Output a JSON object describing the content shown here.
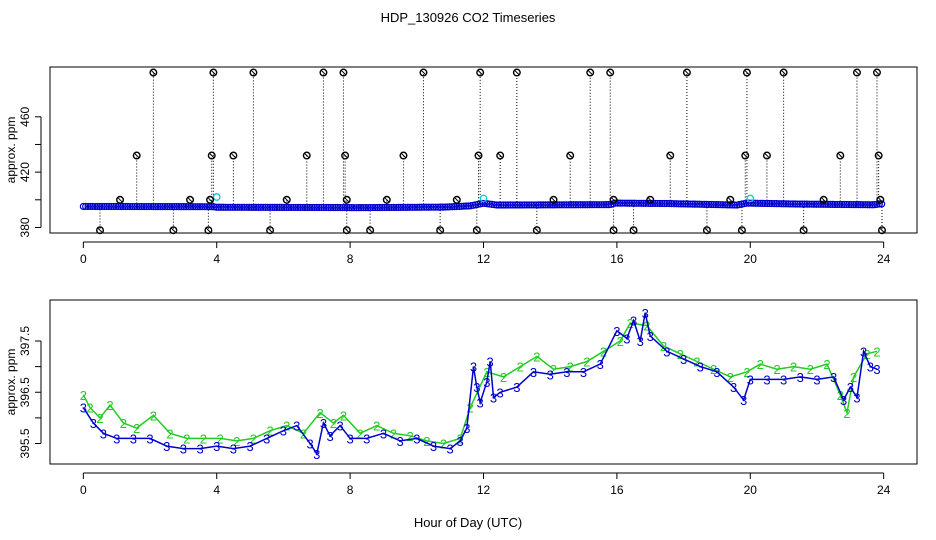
{
  "title": "HDP_130926  CO2 Timeseries",
  "xlabel": "Hour of Day (UTC)",
  "colors": {
    "blue": "#0000cc",
    "cyan": "#00cccc",
    "green": "#22cc22",
    "black": "#000000"
  },
  "chart_data": [
    {
      "type": "scatter",
      "name": "upper-panel",
      "ylabel": "approx. ppm",
      "xlim": [
        -1,
        25
      ],
      "ylim": [
        376,
        496
      ],
      "xticks": [
        0,
        4,
        8,
        12,
        16,
        20,
        24
      ],
      "yticks": [
        380,
        420,
        460
      ],
      "baseline": [
        [
          0,
          395.2
        ],
        [
          3.9,
          395.0
        ],
        [
          4.0,
          394.6
        ],
        [
          7.8,
          394.4
        ],
        [
          8.1,
          394.3
        ],
        [
          10.8,
          394.7
        ],
        [
          11.6,
          395.6
        ],
        [
          12.0,
          397.5
        ],
        [
          12.4,
          396.2
        ],
        [
          15.8,
          396.5
        ],
        [
          15.95,
          397.6
        ],
        [
          17.5,
          397.3
        ],
        [
          19.6,
          396.2
        ],
        [
          19.9,
          397.6
        ],
        [
          21.5,
          396.9
        ],
        [
          23.7,
          396.4
        ],
        [
          23.9,
          397.0
        ]
      ],
      "spikes_high": [
        {
          "x": 2.1,
          "y": 492
        },
        {
          "x": 3.9,
          "y": 492
        },
        {
          "x": 5.1,
          "y": 492
        },
        {
          "x": 7.2,
          "y": 492
        },
        {
          "x": 7.8,
          "y": 492
        },
        {
          "x": 10.2,
          "y": 492
        },
        {
          "x": 11.9,
          "y": 492
        },
        {
          "x": 13.0,
          "y": 492
        },
        {
          "x": 15.2,
          "y": 492
        },
        {
          "x": 15.8,
          "y": 492
        },
        {
          "x": 18.1,
          "y": 492
        },
        {
          "x": 19.9,
          "y": 492
        },
        {
          "x": 21.0,
          "y": 492
        },
        {
          "x": 23.2,
          "y": 492
        },
        {
          "x": 23.8,
          "y": 492
        },
        {
          "x": 1.6,
          "y": 432
        },
        {
          "x": 3.85,
          "y": 432
        },
        {
          "x": 4.5,
          "y": 432
        },
        {
          "x": 6.7,
          "y": 432
        },
        {
          "x": 7.85,
          "y": 432
        },
        {
          "x": 9.6,
          "y": 432
        },
        {
          "x": 11.85,
          "y": 432
        },
        {
          "x": 12.5,
          "y": 432
        },
        {
          "x": 14.6,
          "y": 432
        },
        {
          "x": 17.6,
          "y": 432
        },
        {
          "x": 19.85,
          "y": 432
        },
        {
          "x": 20.5,
          "y": 432
        },
        {
          "x": 22.7,
          "y": 432
        },
        {
          "x": 23.85,
          "y": 432
        },
        {
          "x": 1.1,
          "y": 400
        },
        {
          "x": 3.2,
          "y": 400
        },
        {
          "x": 3.8,
          "y": 400
        },
        {
          "x": 6.1,
          "y": 400
        },
        {
          "x": 7.9,
          "y": 400
        },
        {
          "x": 9.1,
          "y": 400
        },
        {
          "x": 11.2,
          "y": 400
        },
        {
          "x": 14.1,
          "y": 400
        },
        {
          "x": 15.9,
          "y": 400
        },
        {
          "x": 17.0,
          "y": 400
        },
        {
          "x": 19.4,
          "y": 400
        },
        {
          "x": 22.2,
          "y": 400
        },
        {
          "x": 23.9,
          "y": 400
        }
      ],
      "spikes_low": [
        {
          "x": 0.5,
          "y": 378
        },
        {
          "x": 2.7,
          "y": 378
        },
        {
          "x": 3.75,
          "y": 378
        },
        {
          "x": 5.6,
          "y": 378
        },
        {
          "x": 7.9,
          "y": 378
        },
        {
          "x": 8.6,
          "y": 378
        },
        {
          "x": 10.7,
          "y": 378
        },
        {
          "x": 11.8,
          "y": 378
        },
        {
          "x": 13.6,
          "y": 378
        },
        {
          "x": 15.9,
          "y": 378
        },
        {
          "x": 16.5,
          "y": 378
        },
        {
          "x": 18.7,
          "y": 378
        },
        {
          "x": 19.75,
          "y": 378
        },
        {
          "x": 21.6,
          "y": 378
        },
        {
          "x": 23.95,
          "y": 378
        }
      ],
      "cyan_points": [
        {
          "x": 4.0,
          "y": 402
        },
        {
          "x": 12.0,
          "y": 401
        },
        {
          "x": 20.0,
          "y": 401
        }
      ]
    },
    {
      "type": "line",
      "name": "lower-panel",
      "ylabel": "approx. ppm",
      "xlim": [
        -1,
        25
      ],
      "ylim": [
        395.1,
        398.3
      ],
      "xticks": [
        0,
        4,
        8,
        12,
        16,
        20,
        24
      ],
      "yticks": [
        395.5,
        396.5,
        397.5
      ],
      "series": [
        {
          "marker": "3",
          "color": "#0000cc",
          "points": [
            [
              0,
              396.2
            ],
            [
              0.3,
              395.9
            ],
            [
              0.6,
              395.7
            ],
            [
              1.0,
              395.6
            ],
            [
              1.5,
              395.6
            ],
            [
              2.0,
              395.6
            ],
            [
              2.5,
              395.45
            ],
            [
              3.0,
              395.4
            ],
            [
              3.5,
              395.4
            ],
            [
              4.0,
              395.45
            ],
            [
              4.5,
              395.4
            ],
            [
              5.0,
              395.45
            ],
            [
              5.5,
              395.6
            ],
            [
              6.0,
              395.75
            ],
            [
              6.4,
              395.85
            ],
            [
              6.8,
              395.5
            ],
            [
              7.0,
              395.3
            ],
            [
              7.2,
              395.9
            ],
            [
              7.4,
              395.65
            ],
            [
              7.7,
              395.85
            ],
            [
              8.0,
              395.6
            ],
            [
              8.5,
              395.6
            ],
            [
              9.0,
              395.7
            ],
            [
              9.5,
              395.55
            ],
            [
              10.0,
              395.6
            ],
            [
              10.5,
              395.45
            ],
            [
              11.0,
              395.4
            ],
            [
              11.3,
              395.55
            ],
            [
              11.5,
              395.8
            ],
            [
              11.7,
              397.0
            ],
            [
              11.8,
              396.6
            ],
            [
              11.9,
              396.3
            ],
            [
              12.1,
              396.7
            ],
            [
              12.2,
              397.1
            ],
            [
              12.3,
              396.4
            ],
            [
              12.5,
              396.5
            ],
            [
              13.0,
              396.6
            ],
            [
              13.5,
              396.9
            ],
            [
              14.0,
              396.85
            ],
            [
              14.5,
              396.9
            ],
            [
              15.0,
              396.9
            ],
            [
              15.5,
              397.05
            ],
            [
              16.0,
              397.7
            ],
            [
              16.3,
              397.55
            ],
            [
              16.5,
              397.9
            ],
            [
              16.7,
              397.5
            ],
            [
              16.85,
              398.05
            ],
            [
              17.0,
              397.6
            ],
            [
              17.5,
              397.3
            ],
            [
              18.0,
              397.15
            ],
            [
              18.5,
              397.0
            ],
            [
              19.0,
              396.9
            ],
            [
              19.5,
              396.6
            ],
            [
              19.8,
              396.35
            ],
            [
              20.0,
              396.75
            ],
            [
              20.5,
              396.75
            ],
            [
              21.0,
              396.75
            ],
            [
              21.5,
              396.8
            ],
            [
              22.0,
              396.75
            ],
            [
              22.5,
              396.8
            ],
            [
              22.8,
              396.35
            ],
            [
              23.0,
              396.6
            ],
            [
              23.2,
              396.4
            ],
            [
              23.4,
              397.3
            ],
            [
              23.6,
              397.0
            ],
            [
              23.8,
              396.95
            ]
          ]
        },
        {
          "marker": "2",
          "color": "#22cc22",
          "points": [
            [
              0,
              396.45
            ],
            [
              0.2,
              396.2
            ],
            [
              0.5,
              396.0
            ],
            [
              0.8,
              396.25
            ],
            [
              1.2,
              395.9
            ],
            [
              1.6,
              395.8
            ],
            [
              2.1,
              396.05
            ],
            [
              2.6,
              395.7
            ],
            [
              3.1,
              395.6
            ],
            [
              3.6,
              395.6
            ],
            [
              4.1,
              395.6
            ],
            [
              4.6,
              395.55
            ],
            [
              5.1,
              395.6
            ],
            [
              5.6,
              395.75
            ],
            [
              6.1,
              395.85
            ],
            [
              6.6,
              395.7
            ],
            [
              7.1,
              396.1
            ],
            [
              7.5,
              395.9
            ],
            [
              7.8,
              396.05
            ],
            [
              8.3,
              395.7
            ],
            [
              8.8,
              395.85
            ],
            [
              9.3,
              395.7
            ],
            [
              9.8,
              395.65
            ],
            [
              10.3,
              395.55
            ],
            [
              10.8,
              395.5
            ],
            [
              11.3,
              395.6
            ],
            [
              11.6,
              396.2
            ],
            [
              12.1,
              396.9
            ],
            [
              12.6,
              396.8
            ],
            [
              13.1,
              397.0
            ],
            [
              13.6,
              397.2
            ],
            [
              14.1,
              396.95
            ],
            [
              14.6,
              397.0
            ],
            [
              15.1,
              397.1
            ],
            [
              15.6,
              397.3
            ],
            [
              16.1,
              397.5
            ],
            [
              16.4,
              397.85
            ],
            [
              16.9,
              397.8
            ],
            [
              17.4,
              397.4
            ],
            [
              17.9,
              397.25
            ],
            [
              18.4,
              397.1
            ],
            [
              18.9,
              396.95
            ],
            [
              19.4,
              396.8
            ],
            [
              19.9,
              396.9
            ],
            [
              20.3,
              397.05
            ],
            [
              20.8,
              396.95
            ],
            [
              21.3,
              397.0
            ],
            [
              21.8,
              396.95
            ],
            [
              22.3,
              397.05
            ],
            [
              22.7,
              396.45
            ],
            [
              22.9,
              396.1
            ],
            [
              23.1,
              396.8
            ],
            [
              23.5,
              397.25
            ],
            [
              23.8,
              397.3
            ]
          ]
        }
      ]
    }
  ]
}
